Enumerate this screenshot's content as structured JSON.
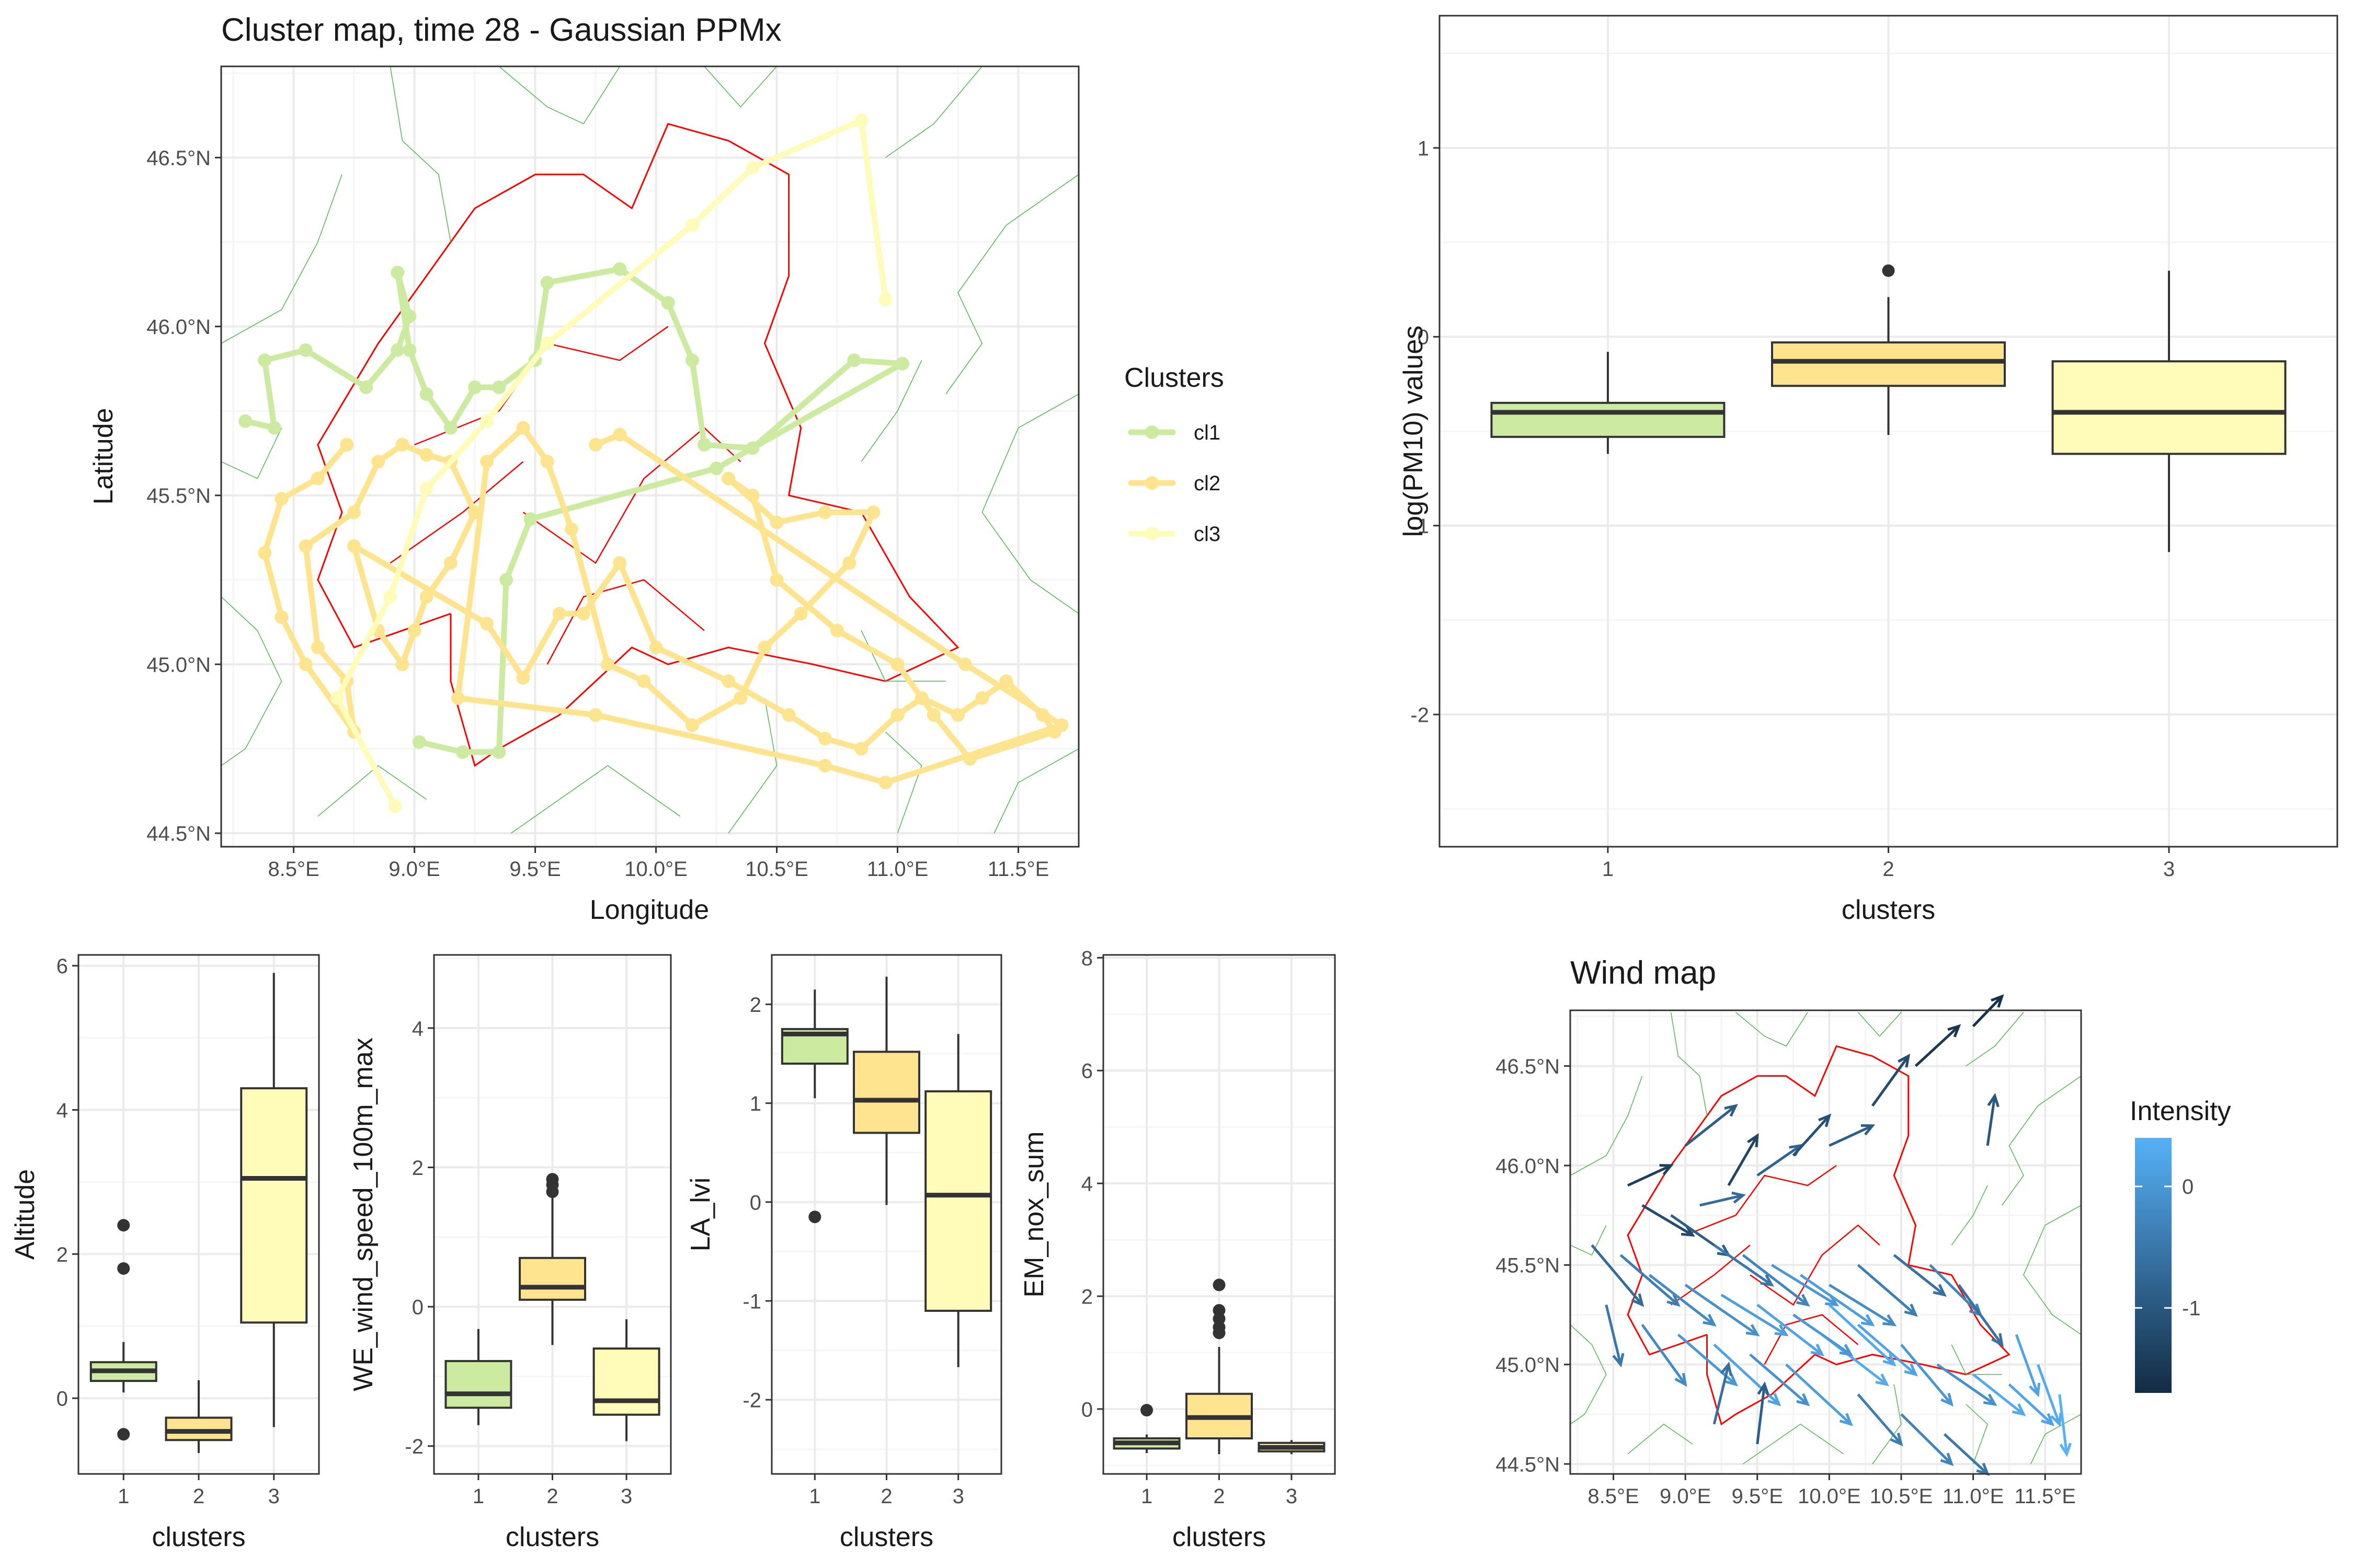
{
  "chart_data": [
    {
      "id": "cluster_map",
      "type": "scatter",
      "title": "Cluster map, time 28 - Gaussian PPMx",
      "xlabel": "Longitude",
      "ylabel": "Latitude",
      "xlim": [
        8.2,
        11.75
      ],
      "ylim": [
        44.46,
        46.77
      ],
      "x_ticks": [
        8.5,
        9.0,
        9.5,
        10.0,
        10.5,
        11.0,
        11.5
      ],
      "x_tick_labels": [
        "8.5°E",
        "9.0°E",
        "9.5°E",
        "10.0°E",
        "10.5°E",
        "11.0°E",
        "11.5°E"
      ],
      "y_ticks": [
        44.5,
        45.0,
        45.5,
        46.0,
        46.5
      ],
      "y_tick_labels": [
        "44.5°N",
        "45.0°N",
        "45.5°N",
        "46.0°N",
        "46.5°N"
      ],
      "legend_title": "Clusters",
      "legend_position": "right",
      "series": [
        {
          "name": "cl1",
          "color": "#CCEBA0",
          "points": [
            [
              8.3,
              45.72
            ],
            [
              8.42,
              45.7
            ],
            [
              8.38,
              45.9
            ],
            [
              8.55,
              45.93
            ],
            [
              8.8,
              45.82
            ],
            [
              8.93,
              45.93
            ],
            [
              8.98,
              46.03
            ],
            [
              8.93,
              46.16
            ],
            [
              8.98,
              45.93
            ],
            [
              9.05,
              45.8
            ],
            [
              9.15,
              45.7
            ],
            [
              9.25,
              45.82
            ],
            [
              9.35,
              45.82
            ],
            [
              9.5,
              45.9
            ],
            [
              9.55,
              46.13
            ],
            [
              9.85,
              46.17
            ],
            [
              10.05,
              46.07
            ],
            [
              10.15,
              45.9
            ],
            [
              10.2,
              45.65
            ],
            [
              10.4,
              45.64
            ],
            [
              10.82,
              45.9
            ],
            [
              11.02,
              45.89
            ],
            [
              10.25,
              45.58
            ],
            [
              9.48,
              45.43
            ],
            [
              9.38,
              45.25
            ],
            [
              9.35,
              44.74
            ],
            [
              9.2,
              44.74
            ],
            [
              9.02,
              44.77
            ]
          ]
        },
        {
          "name": "cl2",
          "color": "#FFE48F",
          "points": [
            [
              8.72,
              45.65
            ],
            [
              8.6,
              45.55
            ],
            [
              8.45,
              45.49
            ],
            [
              8.38,
              45.33
            ],
            [
              8.45,
              45.14
            ],
            [
              8.55,
              45.0
            ],
            [
              8.75,
              44.8
            ],
            [
              8.72,
              44.95
            ],
            [
              8.6,
              45.05
            ],
            [
              8.55,
              45.35
            ],
            [
              8.75,
              45.45
            ],
            [
              8.85,
              45.6
            ],
            [
              8.95,
              45.65
            ],
            [
              9.05,
              45.62
            ],
            [
              9.15,
              45.6
            ],
            [
              9.25,
              45.45
            ],
            [
              9.15,
              45.3
            ],
            [
              9.05,
              45.2
            ],
            [
              9.0,
              45.1
            ],
            [
              8.95,
              45.0
            ],
            [
              8.85,
              45.1
            ],
            [
              8.75,
              45.35
            ],
            [
              9.3,
              45.12
            ],
            [
              9.45,
              44.96
            ],
            [
              9.6,
              45.15
            ],
            [
              9.7,
              45.15
            ],
            [
              9.85,
              45.3
            ],
            [
              10.0,
              45.05
            ],
            [
              10.3,
              44.95
            ],
            [
              10.55,
              44.85
            ],
            [
              10.7,
              44.78
            ],
            [
              10.85,
              44.75
            ],
            [
              11.0,
              44.85
            ],
            [
              11.1,
              44.9
            ],
            [
              11.25,
              44.85
            ],
            [
              11.35,
              44.9
            ],
            [
              11.45,
              44.95
            ],
            [
              11.6,
              44.85
            ],
            [
              11.65,
              44.8
            ],
            [
              11.3,
              44.72
            ],
            [
              11.15,
              44.85
            ],
            [
              11.0,
              45.0
            ],
            [
              10.75,
              45.1
            ],
            [
              10.5,
              45.25
            ],
            [
              10.4,
              45.5
            ],
            [
              10.3,
              45.55
            ],
            [
              10.5,
              45.42
            ],
            [
              10.7,
              45.45
            ],
            [
              10.9,
              45.45
            ],
            [
              10.8,
              45.3
            ],
            [
              10.6,
              45.15
            ],
            [
              10.45,
              45.05
            ],
            [
              10.35,
              44.9
            ],
            [
              10.15,
              44.82
            ],
            [
              9.95,
              44.95
            ],
            [
              9.8,
              45.0
            ],
            [
              9.65,
              45.4
            ],
            [
              9.55,
              45.6
            ],
            [
              9.45,
              45.7
            ],
            [
              9.3,
              45.6
            ],
            [
              9.18,
              44.9
            ],
            [
              9.75,
              44.85
            ],
            [
              10.7,
              44.7
            ],
            [
              10.95,
              44.65
            ],
            [
              11.68,
              44.82
            ],
            [
              11.28,
              45.0
            ],
            [
              9.85,
              45.68
            ],
            [
              9.75,
              45.65
            ]
          ]
        },
        {
          "name": "cl3",
          "color": "#FFFBB8",
          "points": [
            [
              8.92,
              44.58
            ],
            [
              8.68,
              44.9
            ],
            [
              8.9,
              45.2
            ],
            [
              9.05,
              45.52
            ],
            [
              9.3,
              45.72
            ],
            [
              9.55,
              45.95
            ],
            [
              10.15,
              46.3
            ],
            [
              10.4,
              46.47
            ],
            [
              10.85,
              46.61
            ],
            [
              10.95,
              46.08
            ]
          ]
        }
      ],
      "borders": "red regional boundary and green provincial boundaries (background map lines)"
    },
    {
      "id": "pm10_boxplot",
      "type": "boxplot",
      "xlabel": "clusters",
      "ylabel": "log(PM10) values",
      "categories": [
        "1",
        "2",
        "3"
      ],
      "ylim": [
        -2.7,
        1.7
      ],
      "y_ticks": [
        1,
        0,
        -1,
        -2
      ],
      "colors": [
        "#CCEBA0",
        "#FFE48F",
        "#FFFBB8"
      ],
      "boxes": [
        {
          "q1": -0.53,
          "median": -0.4,
          "q3": -0.35,
          "whisker_low": -0.62,
          "whisker_high": -0.08,
          "outliers": []
        },
        {
          "q1": -0.26,
          "median": -0.13,
          "q3": -0.03,
          "whisker_low": -0.52,
          "whisker_high": 0.21,
          "outliers": [
            0.35
          ]
        },
        {
          "q1": -0.62,
          "median": -0.4,
          "q3": -0.13,
          "whisker_low": -1.14,
          "whisker_high": 0.35,
          "outliers": []
        }
      ]
    },
    {
      "id": "altitude_boxplot",
      "type": "boxplot",
      "xlabel": "clusters",
      "ylabel": "Altitude",
      "categories": [
        "1",
        "2",
        "3"
      ],
      "ylim": [
        -1.05,
        6.15
      ],
      "y_ticks": [
        0,
        2,
        4,
        6
      ],
      "colors": [
        "#CCEBA0",
        "#FFE48F",
        "#FFFBB8"
      ],
      "boxes": [
        {
          "q1": 0.24,
          "median": 0.38,
          "q3": 0.5,
          "whisker_low": 0.08,
          "whisker_high": 0.78,
          "outliers": [
            2.4,
            1.8,
            -0.5
          ]
        },
        {
          "q1": -0.58,
          "median": -0.46,
          "q3": -0.27,
          "whisker_low": -0.76,
          "whisker_high": 0.25,
          "outliers": []
        },
        {
          "q1": 1.05,
          "median": 3.05,
          "q3": 4.3,
          "whisker_low": -0.4,
          "whisker_high": 5.9,
          "outliers": []
        }
      ]
    },
    {
      "id": "wind_boxplot",
      "type": "boxplot",
      "xlabel": "clusters",
      "ylabel": "WE_wind_speed_100m_max",
      "categories": [
        "1",
        "2",
        "3"
      ],
      "ylim": [
        -2.4,
        5.05
      ],
      "y_ticks": [
        -2,
        0,
        2,
        4
      ],
      "colors": [
        "#CCEBA0",
        "#FFE48F",
        "#FFFBB8"
      ],
      "boxes": [
        {
          "q1": -1.45,
          "median": -1.25,
          "q3": -0.78,
          "whisker_low": -1.7,
          "whisker_high": -0.32,
          "outliers": []
        },
        {
          "q1": 0.1,
          "median": 0.28,
          "q3": 0.7,
          "whisker_low": -0.55,
          "whisker_high": 1.6,
          "outliers": [
            1.83,
            1.75,
            1.65
          ]
        },
        {
          "q1": -1.55,
          "median": -1.35,
          "q3": -0.6,
          "whisker_low": -1.93,
          "whisker_high": -0.18,
          "outliers": []
        }
      ]
    },
    {
      "id": "la_lvi_boxplot",
      "type": "boxplot",
      "xlabel": "clusters",
      "ylabel": "LA_lvi",
      "categories": [
        "1",
        "2",
        "3"
      ],
      "ylim": [
        -2.75,
        2.5
      ],
      "y_ticks": [
        2,
        1,
        0,
        -1,
        -2
      ],
      "colors": [
        "#CCEBA0",
        "#FFE48F",
        "#FFFBB8"
      ],
      "boxes": [
        {
          "q1": 1.4,
          "median": 1.7,
          "q3": 1.75,
          "whisker_low": 1.05,
          "whisker_high": 2.15,
          "outliers": [
            -0.15
          ]
        },
        {
          "q1": 0.7,
          "median": 1.03,
          "q3": 1.52,
          "whisker_low": -0.03,
          "whisker_high": 2.28,
          "outliers": []
        },
        {
          "q1": -1.1,
          "median": 0.07,
          "q3": 1.12,
          "whisker_low": -1.67,
          "whisker_high": 1.7,
          "outliers": []
        }
      ]
    },
    {
      "id": "nox_boxplot",
      "type": "boxplot",
      "xlabel": "clusters",
      "ylabel": "EM_nox_sum",
      "categories": [
        "1",
        "2",
        "3"
      ],
      "ylim": [
        -1.15,
        8.05
      ],
      "y_ticks": [
        0,
        2,
        4,
        6,
        8
      ],
      "colors": [
        "#CCEBA0",
        "#FFE48F",
        "#FFFBB8"
      ],
      "boxes": [
        {
          "q1": -0.7,
          "median": -0.6,
          "q3": -0.52,
          "whisker_low": -0.78,
          "whisker_high": -0.45,
          "outliers": [
            -0.02
          ]
        },
        {
          "q1": -0.52,
          "median": -0.15,
          "q3": 0.27,
          "whisker_low": -0.8,
          "whisker_high": 1.1,
          "outliers": [
            2.2,
            1.75,
            1.6,
            1.45,
            1.35
          ]
        },
        {
          "q1": -0.75,
          "median": -0.68,
          "q3": -0.6,
          "whisker_low": -0.8,
          "whisker_high": -0.55,
          "outliers": []
        }
      ]
    },
    {
      "id": "wind_map",
      "type": "vector_field",
      "title": "Wind map",
      "xlim": [
        8.2,
        11.75
      ],
      "ylim": [
        44.45,
        46.78
      ],
      "x_ticks": [
        8.5,
        9.0,
        9.5,
        10.0,
        10.5,
        11.0,
        11.5
      ],
      "x_tick_labels": [
        "8.5°E",
        "9.0°E",
        "9.5°E",
        "10.0°E",
        "10.5°E",
        "11.0°E",
        "11.5°E"
      ],
      "y_ticks": [
        44.5,
        45.0,
        45.5,
        46.0,
        46.5
      ],
      "y_tick_labels": [
        "44.5°N",
        "45.0°N",
        "45.5°N",
        "46.0°N",
        "46.5°N"
      ],
      "legend_title": "Intensity",
      "legend_ticks": [
        "0",
        "-1"
      ],
      "legend_range": [
        -1.7,
        0.4
      ],
      "colormap": [
        "#132B43",
        "#56B1F7"
      ],
      "vectors": [
        [
          9.0,
          46.1,
          0.35,
          0.2,
          -0.9
        ],
        [
          8.6,
          45.9,
          0.3,
          0.1,
          -1.4
        ],
        [
          8.7,
          45.8,
          0.35,
          -0.15,
          -1.2
        ],
        [
          8.9,
          45.75,
          0.4,
          -0.2,
          -0.9
        ],
        [
          9.1,
          45.8,
          0.3,
          0.05,
          -0.7
        ],
        [
          9.3,
          45.9,
          0.2,
          0.25,
          -1.3
        ],
        [
          9.5,
          45.95,
          0.3,
          0.15,
          -0.8
        ],
        [
          9.75,
          46.05,
          0.25,
          0.2,
          -1.1
        ],
        [
          10.0,
          46.1,
          0.3,
          0.1,
          -0.9
        ],
        [
          10.3,
          46.3,
          0.25,
          0.25,
          -1.2
        ],
        [
          10.6,
          46.5,
          0.3,
          0.2,
          -1.5
        ],
        [
          11.0,
          46.7,
          0.2,
          0.15,
          -1.6
        ],
        [
          11.1,
          46.1,
          0.05,
          0.25,
          -1.0
        ],
        [
          9.2,
          45.6,
          0.4,
          -0.2,
          -0.5
        ],
        [
          9.4,
          45.55,
          0.45,
          -0.25,
          -0.3
        ],
        [
          9.6,
          45.5,
          0.45,
          -0.2,
          0.0
        ],
        [
          9.8,
          45.45,
          0.5,
          -0.25,
          0.1
        ],
        [
          10.0,
          45.4,
          0.45,
          -0.2,
          -0.2
        ],
        [
          10.2,
          45.5,
          0.4,
          -0.25,
          -0.4
        ],
        [
          10.45,
          45.55,
          0.35,
          -0.2,
          -0.6
        ],
        [
          10.7,
          45.5,
          0.35,
          -0.25,
          -0.3
        ],
        [
          10.9,
          45.4,
          0.3,
          -0.3,
          -0.6
        ],
        [
          8.45,
          45.3,
          0.1,
          -0.3,
          -0.5
        ],
        [
          8.7,
          45.2,
          0.3,
          -0.3,
          -0.2
        ],
        [
          8.95,
          45.15,
          0.4,
          -0.25,
          0.0
        ],
        [
          9.2,
          45.1,
          0.45,
          -0.3,
          0.2
        ],
        [
          9.45,
          45.05,
          0.4,
          -0.25,
          -0.1
        ],
        [
          9.7,
          45.0,
          0.45,
          -0.3,
          0.1
        ],
        [
          9.95,
          45.15,
          0.45,
          -0.25,
          0.3
        ],
        [
          10.2,
          45.2,
          0.4,
          -0.25,
          0.2
        ],
        [
          10.5,
          45.1,
          0.35,
          -0.3,
          0.0
        ],
        [
          10.75,
          45.0,
          0.4,
          -0.2,
          -0.1
        ],
        [
          11.0,
          44.95,
          0.35,
          -0.2,
          0.3
        ],
        [
          11.25,
          44.9,
          0.3,
          -0.2,
          0.2
        ],
        [
          11.45,
          45.0,
          0.15,
          -0.3,
          0.3
        ],
        [
          11.6,
          44.85,
          0.05,
          -0.3,
          0.4
        ],
        [
          11.3,
          45.15,
          0.15,
          -0.3,
          0.2
        ],
        [
          10.2,
          44.85,
          0.3,
          -0.25,
          -0.4
        ],
        [
          10.5,
          44.75,
          0.35,
          -0.25,
          -0.3
        ],
        [
          10.8,
          44.65,
          0.3,
          -0.2,
          -0.5
        ],
        [
          9.5,
          44.6,
          0.05,
          0.3,
          -0.9
        ],
        [
          9.2,
          44.7,
          0.1,
          0.3,
          -0.6
        ],
        [
          8.35,
          45.6,
          0.35,
          -0.3,
          -0.7
        ],
        [
          8.55,
          45.55,
          0.4,
          -0.25,
          -0.4
        ],
        [
          8.75,
          45.45,
          0.45,
          -0.25,
          -0.2
        ],
        [
          9.0,
          45.4,
          0.5,
          -0.25,
          -0.1
        ],
        [
          9.25,
          45.35,
          0.45,
          -0.2,
          0.1
        ],
        [
          9.5,
          45.3,
          0.45,
          -0.25,
          0.2
        ],
        [
          9.75,
          45.25,
          0.4,
          -0.2,
          0.0
        ],
        [
          10.0,
          45.3,
          0.45,
          -0.3,
          0.3
        ]
      ]
    }
  ]
}
